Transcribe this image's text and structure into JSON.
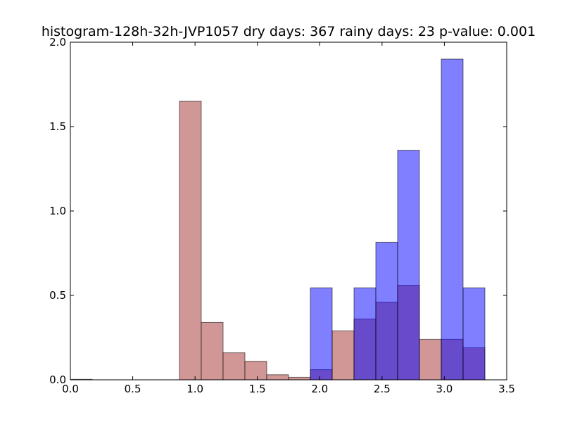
{
  "chart_data": {
    "type": "bar",
    "title": "histogram-128h-32h-JVP1057 dry days: 367 rainy days: 23 p-value: 0.001",
    "xlabel": "",
    "ylabel": "",
    "xlim": [
      0.0,
      3.5
    ],
    "ylim": [
      0.0,
      2.0
    ],
    "grid": false,
    "xticks": [
      "0.0",
      "0.5",
      "1.0",
      "1.5",
      "2.0",
      "2.5",
      "3.0",
      "3.5"
    ],
    "yticks": [
      "0.0",
      "0.5",
      "1.0",
      "1.5",
      "2.0"
    ],
    "bin_edges": [
      0.0,
      0.175,
      0.35,
      0.525,
      0.7,
      0.875,
      1.05,
      1.225,
      1.4,
      1.575,
      1.75,
      1.925,
      2.1,
      2.275,
      2.45,
      2.625,
      2.8,
      2.975,
      3.15,
      3.325
    ],
    "series": [
      {
        "color": "#c27474",
        "opacity": 0.75,
        "values": [
          0.003,
          0,
          0,
          0,
          0,
          1.65,
          0.34,
          0.16,
          0.11,
          0.03,
          0.015,
          0.06,
          0.29,
          0.36,
          0.46,
          0.56,
          0.24,
          0.24,
          0.19
        ]
      },
      {
        "color": "#0000ff",
        "opacity": 0.5,
        "values": [
          0,
          0,
          0,
          0,
          0,
          0,
          0,
          0,
          0,
          0,
          0,
          0.545,
          0,
          0.545,
          0.815,
          1.36,
          0,
          1.9,
          0.545
        ]
      }
    ]
  }
}
